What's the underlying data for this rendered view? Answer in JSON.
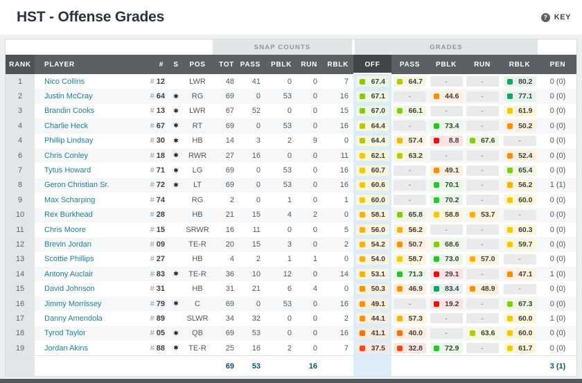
{
  "page": {
    "title": "HST - Offense Grades",
    "key_label": "KEY",
    "help_glyph": "?"
  },
  "table": {
    "groups": {
      "snap_counts": "SNAP COUNTS",
      "grades": "GRADES"
    },
    "headers": [
      "RANK",
      "PLAYER",
      "#",
      "S",
      "POS",
      "TOT",
      "PASS",
      "PBLK",
      "RUN",
      "RBLK",
      "OFF",
      "PASS",
      "PBLK",
      "RUN",
      "RBLK",
      "PEN"
    ],
    "rows": [
      {
        "rank": "1",
        "player": "Nico Collins",
        "num": "12",
        "starter": false,
        "pos": "LWR",
        "snaps": [
          48,
          41,
          0,
          0,
          7
        ],
        "grades": [
          "67.4",
          "64.7",
          null,
          null,
          "80.2"
        ],
        "pen": "0 (0)"
      },
      {
        "rank": "2",
        "player": "Justin McCray",
        "num": "64",
        "starter": true,
        "pos": "RG",
        "snaps": [
          69,
          0,
          53,
          0,
          16
        ],
        "grades": [
          "67.1",
          null,
          "44.6",
          null,
          "77.1"
        ],
        "pen": "0 (0)"
      },
      {
        "rank": "3",
        "player": "Brandin Cooks",
        "num": "13",
        "starter": true,
        "pos": "LWR",
        "snaps": [
          67,
          52,
          0,
          0,
          15
        ],
        "grades": [
          "67.0",
          "66.1",
          null,
          null,
          "61.9"
        ],
        "pen": "0 (0)"
      },
      {
        "rank": "4",
        "player": "Charlie Heck",
        "num": "67",
        "starter": true,
        "pos": "RT",
        "snaps": [
          69,
          0,
          53,
          0,
          16
        ],
        "grades": [
          "64.4",
          null,
          "73.4",
          null,
          "50.2"
        ],
        "pen": "0 (0)"
      },
      {
        "rank": "4",
        "player": "Phillip Lindsay",
        "num": "30",
        "starter": true,
        "pos": "HB",
        "snaps": [
          14,
          3,
          2,
          9,
          0
        ],
        "grades": [
          "64.4",
          "57.4",
          "8.8",
          "67.6",
          null
        ],
        "pen": "0 (0)"
      },
      {
        "rank": "6",
        "player": "Chris Conley",
        "num": "18",
        "starter": true,
        "pos": "RWR",
        "snaps": [
          27,
          16,
          0,
          0,
          11
        ],
        "grades": [
          "62.1",
          "63.2",
          null,
          null,
          "52.4"
        ],
        "pen": "0 (0)"
      },
      {
        "rank": "7",
        "player": "Tytus Howard",
        "num": "71",
        "starter": true,
        "pos": "LG",
        "snaps": [
          69,
          0,
          53,
          0,
          16
        ],
        "grades": [
          "60.7",
          null,
          "49.1",
          null,
          "65.4"
        ],
        "pen": "0 (0)"
      },
      {
        "rank": "8",
        "player": "Geron Christian Sr.",
        "num": "72",
        "starter": true,
        "pos": "LT",
        "snaps": [
          69,
          0,
          53,
          0,
          16
        ],
        "grades": [
          "60.6",
          null,
          "70.1",
          null,
          "56.2"
        ],
        "pen": "1 (1)"
      },
      {
        "rank": "9",
        "player": "Max Scharping",
        "num": "74",
        "starter": false,
        "pos": "RG",
        "snaps": [
          2,
          0,
          1,
          0,
          1
        ],
        "grades": [
          "60.0",
          null,
          "70.2",
          null,
          "60.0"
        ],
        "pen": "0 (0)"
      },
      {
        "rank": "10",
        "player": "Rex Burkhead",
        "num": "28",
        "starter": false,
        "pos": "HB",
        "snaps": [
          21,
          15,
          4,
          2,
          0
        ],
        "grades": [
          "58.1",
          "65.8",
          "58.8",
          "53.7",
          null
        ],
        "pen": "0 (0)"
      },
      {
        "rank": "11",
        "player": "Chris Moore",
        "num": "15",
        "starter": false,
        "pos": "SRWR",
        "snaps": [
          16,
          11,
          0,
          0,
          5
        ],
        "grades": [
          "56.0",
          "56.2",
          null,
          null,
          "60.3"
        ],
        "pen": "0 (0)"
      },
      {
        "rank": "12",
        "player": "Brevin Jordan",
        "num": "09",
        "starter": false,
        "pos": "TE-R",
        "snaps": [
          20,
          15,
          3,
          0,
          2
        ],
        "grades": [
          "54.2",
          "50.7",
          "68.6",
          null,
          "59.7"
        ],
        "pen": "0 (0)"
      },
      {
        "rank": "13",
        "player": "Scottie Phillips",
        "num": "27",
        "starter": false,
        "pos": "HB",
        "snaps": [
          4,
          2,
          1,
          1,
          0
        ],
        "grades": [
          "54.0",
          "58.7",
          "73.0",
          "57.0",
          null
        ],
        "pen": "0 (0)"
      },
      {
        "rank": "14",
        "player": "Antony Auclair",
        "num": "83",
        "starter": true,
        "pos": "TE-R",
        "snaps": [
          36,
          10,
          12,
          0,
          14
        ],
        "grades": [
          "53.1",
          "71.3",
          "29.1",
          null,
          "47.1"
        ],
        "pen": "1 (0)"
      },
      {
        "rank": "15",
        "player": "David Johnson",
        "num": "31",
        "starter": false,
        "pos": "HB",
        "snaps": [
          31,
          21,
          6,
          4,
          0
        ],
        "grades": [
          "50.3",
          "46.9",
          "83.4",
          "48.9",
          null
        ],
        "pen": "0 (0)"
      },
      {
        "rank": "16",
        "player": "Jimmy Morrissey",
        "num": "79",
        "starter": true,
        "pos": "C",
        "snaps": [
          69,
          0,
          53,
          0,
          16
        ],
        "grades": [
          "49.1",
          null,
          "19.2",
          null,
          "67.3"
        ],
        "pen": "0 (0)"
      },
      {
        "rank": "17",
        "player": "Danny Amendola",
        "num": "89",
        "starter": false,
        "pos": "SLWR",
        "snaps": [
          34,
          32,
          0,
          0,
          2
        ],
        "grades": [
          "44.1",
          "57.3",
          null,
          null,
          "60.0"
        ],
        "pen": "1 (0)"
      },
      {
        "rank": "18",
        "player": "Tyrod Taylor",
        "num": "05",
        "starter": true,
        "pos": "QB",
        "snaps": [
          69,
          53,
          0,
          0,
          16
        ],
        "grades": [
          "41.1",
          "40.0",
          null,
          "63.6",
          "60.0"
        ],
        "pen": "0 (0)"
      },
      {
        "rank": "19",
        "player": "Jordan Akins",
        "num": "88",
        "starter": true,
        "pos": "TE-R",
        "snaps": [
          25,
          16,
          2,
          0,
          7
        ],
        "grades": [
          "37.5",
          "32.8",
          "72.9",
          null,
          "61.7"
        ],
        "pen": "0 (0)"
      }
    ],
    "footer": {
      "tot": "69",
      "pass": "53",
      "run": "16",
      "pen": "3 (1)"
    },
    "starter_glyph": "✱"
  },
  "colors": {
    "player_link": "#1f7e98",
    "off_column_highlight": "#dcedf8",
    "header_bg": "#5a6063",
    "selected_header_bg": "#404548",
    "footer_value_text": "#0d516f",
    "grade_scale": [
      {
        "min": 75,
        "icon": "#15a562",
        "bg": "#e3f3eb"
      },
      {
        "min": 70,
        "icon": "#27c527",
        "bg": "#e7f8e5"
      },
      {
        "min": 65,
        "icon": "#83cb0e",
        "bg": "#eff7e0"
      },
      {
        "min": 62.5,
        "icon": "#b8c706",
        "bg": "#f6f7dc"
      },
      {
        "min": 58.5,
        "icon": "#f2c904",
        "bg": "#fcf5d7"
      },
      {
        "min": 53,
        "icon": "#fcb005",
        "bg": "#fef3dc"
      },
      {
        "min": 44,
        "icon": "#fb8e07",
        "bg": "#feeedc"
      },
      {
        "min": 40,
        "icon": "#fb6d07",
        "bg": "#feeada"
      },
      {
        "min": 31,
        "icon": "#fa4513",
        "bg": "#fee5de"
      },
      {
        "min": 0,
        "icon": "#ef0e0e",
        "bg": "#fce3e3"
      }
    ],
    "null_grade": {
      "bg": "#e8eaec",
      "text": "#979da1"
    }
  }
}
